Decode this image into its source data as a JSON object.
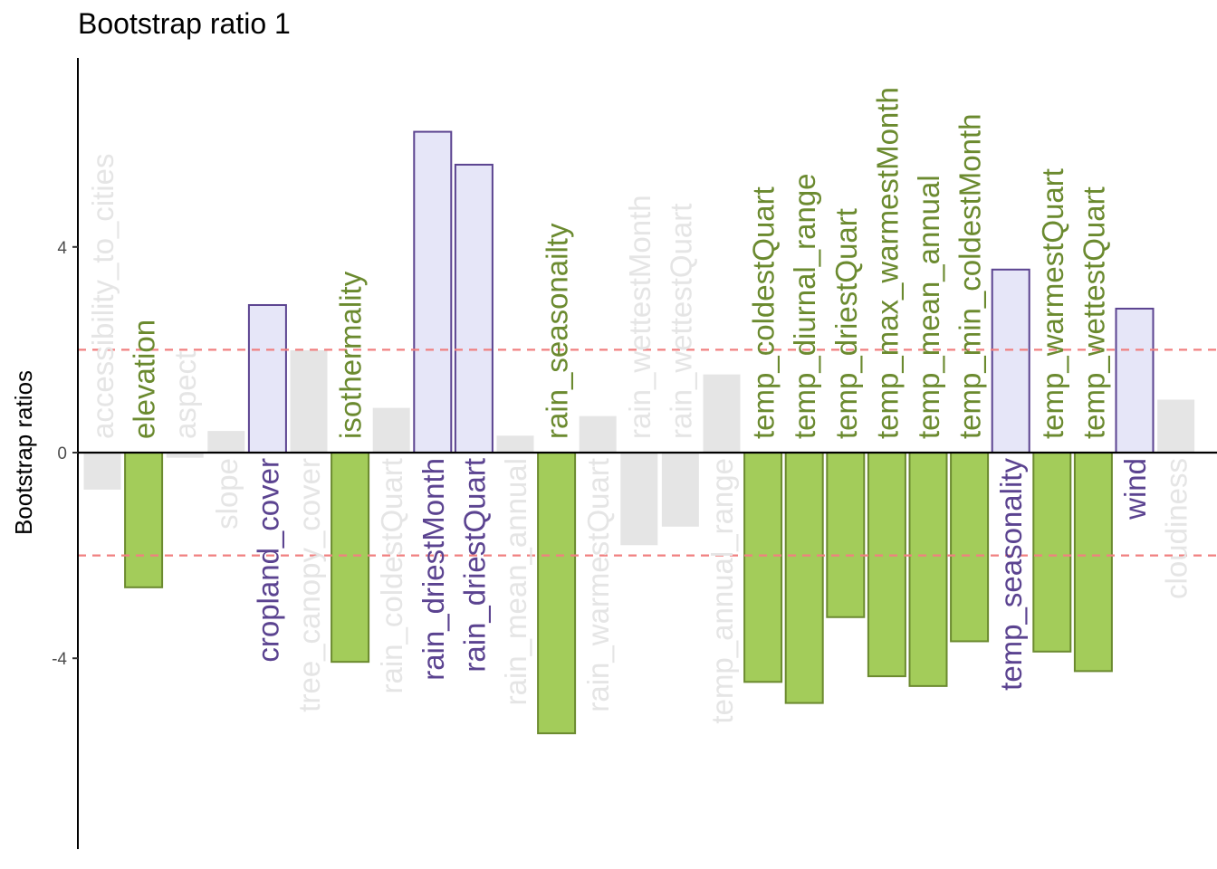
{
  "chart_data": {
    "type": "bar",
    "title": "Bootstrap ratio 1",
    "xlabel": "",
    "ylabel": "Bootstrap ratios",
    "ylim": [
      -7.7,
      7.7
    ],
    "yticks": [
      -4,
      0,
      4
    ],
    "ytick_labels": [
      "-4",
      "0",
      "4"
    ],
    "threshold": 2,
    "threshold_color": "#f08080",
    "grid": false,
    "legend": "none",
    "colors": {
      "positive_fill": "#e6e6f8",
      "positive_stroke": "#5b4390",
      "positive_text": "#5b4390",
      "negative_fill": "#a3cc5a",
      "negative_stroke": "#6b8a2f",
      "negative_text": "#6b8a2f",
      "nonsig_fill": "#e5e5e5",
      "nonsig_text": "#e5e5e5"
    },
    "categories": [
      "accessibility_to_cities",
      "elevation",
      "aspect",
      "slope",
      "cropland_cover",
      "tree_canopy_cover",
      "isothermality",
      "rain_coldestQuart",
      "rain_driestMonth",
      "rain_driestQuart",
      "rain_mean_annual",
      "rain_seasonailty",
      "rain_warmestQuart",
      "rain_wettestMonth",
      "rain_wettestQuart",
      "temp_annual_range",
      "temp_coldestQuart",
      "temp_diurnal_range",
      "temp_driestQuart",
      "temp_max_warmestMonth",
      "temp_mean_annual",
      "temp_min_coldestMonth",
      "temp_seasonality",
      "temp_warmestQuart",
      "temp_wettestQuart",
      "wind",
      "cloudiness"
    ],
    "values": [
      -0.72,
      -2.62,
      -0.1,
      0.42,
      2.87,
      1.99,
      -4.07,
      0.87,
      6.24,
      5.6,
      0.33,
      -5.46,
      0.71,
      -1.8,
      -1.44,
      1.52,
      -4.46,
      -4.87,
      -3.2,
      -4.35,
      -4.54,
      -3.67,
      3.56,
      -3.87,
      -4.25,
      2.8,
      1.03
    ]
  }
}
